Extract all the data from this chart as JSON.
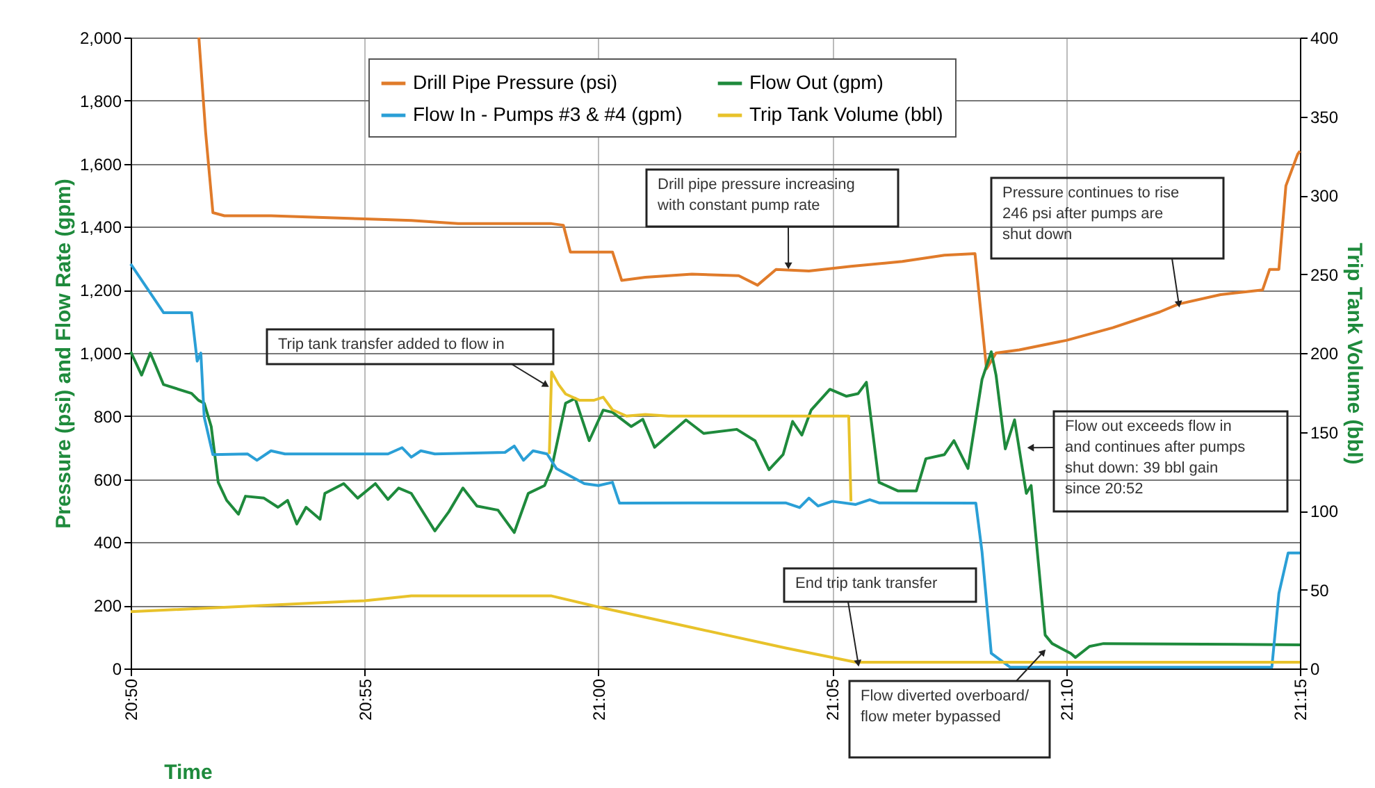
{
  "chart_data": {
    "type": "line",
    "xlabel": "Time",
    "ylabel": "Pressure (psi) and Flow Rate (gpm)",
    "y2label": "Trip Tank Volume (bbl)",
    "xlim": [
      20.8333,
      21.25
    ],
    "xticks": [
      {
        "value": 20.8333,
        "label": "20:50"
      },
      {
        "value": 20.9167,
        "label": "20:55"
      },
      {
        "value": 21.0,
        "label": "21:00"
      },
      {
        "value": 21.0833,
        "label": "21:05"
      },
      {
        "value": 21.1667,
        "label": "21:10"
      },
      {
        "value": 21.25,
        "label": "21:15"
      }
    ],
    "ylim": [
      0,
      2000
    ],
    "yticks": [
      0,
      200,
      400,
      600,
      800,
      {
        "value": 1000,
        "label": "1,000"
      },
      {
        "value": 1200,
        "label": "1,200"
      },
      {
        "value": 1400,
        "label": "1,400"
      },
      {
        "value": 1600,
        "label": "1,600"
      },
      {
        "value": 1800,
        "label": "1,800"
      },
      {
        "value": 2000,
        "label": "2,000"
      }
    ],
    "y2lim": [
      0,
      400
    ],
    "y2ticks": [
      0,
      50,
      100,
      150,
      200,
      250,
      300,
      350,
      400
    ],
    "grid": true,
    "legend": "top",
    "series": [
      {
        "name": "Drill Pipe Pressure (psi)",
        "color": "#e07b2a",
        "x": [
          20.8576,
          20.86,
          20.8626,
          20.8667,
          20.8833,
          20.9,
          20.9167,
          20.9333,
          20.95,
          20.9667,
          20.9833,
          20.9875,
          20.99,
          21.005,
          21.0083,
          21.0167,
          21.0333,
          21.05,
          21.0567,
          21.0633,
          21.075,
          21.09,
          21.1083,
          21.1233,
          21.1342,
          21.1383,
          21.1417,
          21.15,
          21.1667,
          21.1833,
          21.2,
          21.2067,
          21.2217,
          21.2367,
          21.2392,
          21.2425,
          21.245,
          21.2492,
          21.25
        ],
        "values": [
          2000,
          1700,
          1445,
          1435,
          1435,
          1430,
          1425,
          1420,
          1410,
          1410,
          1410,
          1405,
          1320,
          1320,
          1230,
          1240,
          1250,
          1245,
          1215,
          1265,
          1260,
          1275,
          1290,
          1310,
          1315,
          950,
          1000,
          1010,
          1040,
          1080,
          1130,
          1155,
          1185,
          1200,
          1265,
          1265,
          1530,
          1630,
          1640
        ]
      },
      {
        "name": "Flow Out (gpm)",
        "color": "#1e8a3c",
        "x": [
          20.8333,
          20.8372,
          20.8403,
          20.845,
          20.855,
          20.8575,
          20.8595,
          20.862,
          20.8645,
          20.8675,
          20.8717,
          20.8742,
          20.8808,
          20.8858,
          20.8892,
          20.8925,
          20.8958,
          20.9008,
          20.9025,
          20.9092,
          20.9142,
          20.9205,
          20.925,
          20.9288,
          20.9333,
          20.9417,
          20.9467,
          20.9517,
          20.9567,
          20.9642,
          20.97,
          20.975,
          20.9808,
          20.9833,
          20.9883,
          20.9917,
          20.9967,
          21.0017,
          21.005,
          21.0117,
          21.0158,
          21.02,
          21.025,
          21.0312,
          21.0375,
          21.0493,
          21.0558,
          21.0608,
          21.0658,
          21.0692,
          21.0725,
          21.0758,
          21.0825,
          21.0883,
          21.0925,
          21.0955,
          21.1,
          21.1067,
          21.1133,
          21.1167,
          21.1233,
          21.1267,
          21.1317,
          21.1367,
          21.14,
          21.1417,
          21.145,
          21.1483,
          21.1525,
          21.1542,
          21.1567,
          21.1592,
          21.1617,
          21.1683,
          21.17,
          21.175,
          21.18,
          21.25
        ],
        "values": [
          1004,
          930,
          1000,
          900,
          872,
          850,
          841,
          767,
          590,
          533,
          489,
          546,
          540,
          511,
          533,
          458,
          511,
          473,
          555,
          586,
          540,
          586,
          536,
          572,
          555,
          436,
          497,
          572,
          515,
          502,
          431,
          555,
          580,
          634,
          841,
          856,
          722,
          819,
          812,
          767,
          790,
          701,
          740,
          788,
          745,
          758,
          722,
          630,
          678,
          783,
          740,
          819,
          885,
          863,
          871,
          907,
          590,
          563,
          563,
          665,
          678,
          722,
          634,
          916,
          1004,
          930,
          696,
          788,
          555,
          580,
          343,
          106,
          79,
          48,
          35,
          70,
          79,
          75
        ]
      },
      {
        "name": "Flow In - Pumps #3 & #4 (gpm)",
        "color": "#2a9fd6",
        "x": [
          20.8333,
          20.84,
          20.845,
          20.855,
          20.857,
          20.8583,
          20.8595,
          20.8626,
          20.875,
          20.8783,
          20.8833,
          20.8883,
          20.925,
          20.93,
          20.9333,
          20.9367,
          20.9417,
          20.9667,
          20.97,
          20.9733,
          20.9767,
          20.9817,
          20.985,
          20.995,
          21.0,
          21.005,
          21.0075,
          21.0333,
          21.0667,
          21.0717,
          21.075,
          21.0783,
          21.0833,
          21.0917,
          21.0967,
          21.1,
          21.1345,
          21.1367,
          21.14,
          21.1467,
          21.24,
          21.2425,
          21.2458,
          21.25
        ],
        "values": [
          1282,
          1194,
          1128,
          1128,
          974,
          1000,
          797,
          678,
          680,
          660,
          690,
          680,
          680,
          700,
          670,
          690,
          680,
          685,
          705,
          660,
          690,
          680,
          634,
          586,
          580,
          590,
          524,
          525,
          525,
          510,
          540,
          515,
          530,
          520,
          535,
          525,
          524,
          370,
          48,
          4,
          4,
          238,
          366,
          366
        ]
      },
      {
        "name": "Trip Tank Volume (bbl)",
        "color": "#e8c22a",
        "axis": "y2",
        "x": [
          20.8333,
          20.9167,
          20.9333,
          20.9833,
          21.0,
          21.0333,
          21.0667,
          21.0917,
          21.25
        ],
        "values": [
          36,
          43,
          46,
          46,
          39,
          26,
          13,
          4,
          4
        ]
      },
      {
        "color": "#e8c22a",
        "x": [
          20.9825,
          20.9833,
          20.9858,
          20.9883,
          20.9933,
          20.9983,
          21.0017,
          21.005,
          21.01,
          21.0167,
          21.025,
          21.0892,
          21.09
        ],
        "values": [
          680,
          940,
          900,
          870,
          850,
          850,
          860,
          820,
          800,
          805,
          800,
          800,
          530
        ]
      }
    ],
    "annotations": [
      {
        "text": "Drill pipe pressure increasing with constant pump rate",
        "x": 21.0677,
        "y": 1280
      },
      {
        "text": "Pressure continues to rise 246 psi after pumps are shut down",
        "x": 21.2068,
        "y": 1158
      },
      {
        "text": "Trip tank transfer added to flow in",
        "x": 20.981,
        "y": 900
      },
      {
        "text": "Flow out exceeds flow in and continues after pumps shut down: 39 bbl gain since 20:52",
        "x": 21.1544,
        "y": 700
      },
      {
        "text": "End trip tank transfer",
        "x": 21.0925,
        "y": 20
      },
      {
        "text": "Flow diverted overboard/ flow meter bypassed",
        "x": 21.1583,
        "y": 50
      }
    ]
  }
}
